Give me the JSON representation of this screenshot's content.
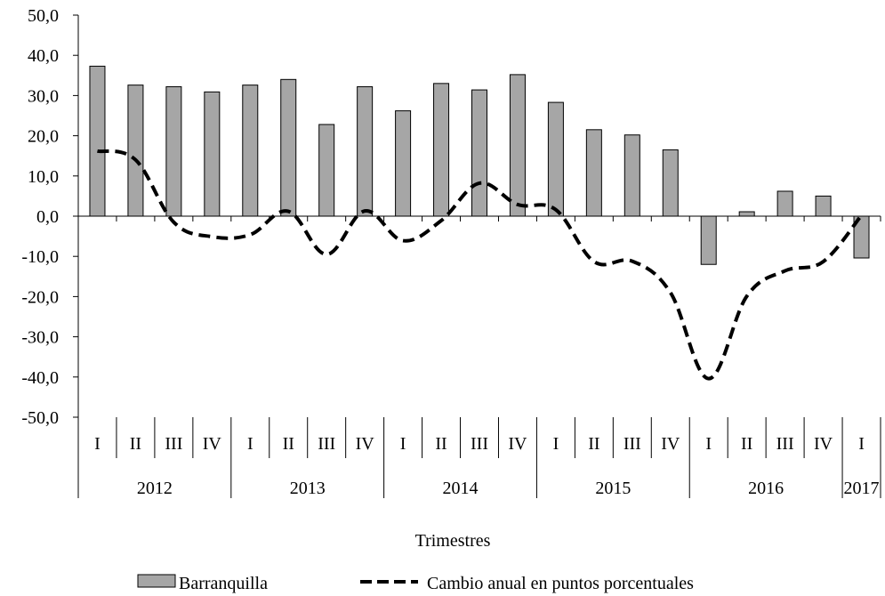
{
  "chart_data": {
    "type": "bar",
    "ylim": [
      -50,
      50
    ],
    "y_ticks": [
      "50,0",
      "40,0",
      "30,0",
      "20,0",
      "10,0",
      "0,0",
      "-10,0",
      "-20,0",
      "-30,0",
      "-40,0",
      "-50,0"
    ],
    "y_tick_values": [
      50,
      40,
      30,
      20,
      10,
      0,
      -10,
      -20,
      -30,
      -40,
      -50
    ],
    "categories": [
      "I",
      "II",
      "III",
      "IV",
      "I",
      "II",
      "III",
      "IV",
      "I",
      "II",
      "III",
      "IV",
      "I",
      "II",
      "III",
      "IV",
      "I",
      "II",
      "III",
      "IV",
      "I"
    ],
    "years": [
      {
        "label": "2012",
        "count": 4
      },
      {
        "label": "2013",
        "count": 4
      },
      {
        "label": "2014",
        "count": 4
      },
      {
        "label": "2015",
        "count": 4
      },
      {
        "label": "2016",
        "count": 4
      },
      {
        "label": "2017",
        "count": 1
      }
    ],
    "xlabel": "Trimestres",
    "series": [
      {
        "name": "Barranquilla",
        "type": "bar",
        "color": "#a6a6a6",
        "values": [
          37.3,
          32.6,
          32.2,
          30.9,
          32.6,
          34.0,
          22.8,
          32.2,
          26.2,
          33.0,
          31.4,
          35.2,
          28.3,
          21.5,
          20.2,
          16.5,
          -12.0,
          1.1,
          6.2,
          5.0,
          -10.4
        ]
      },
      {
        "name": "Cambio anual en puntos porcentuales",
        "type": "line",
        "style": "dashed",
        "color": "#000000",
        "values": [
          16.2,
          14.0,
          -1.5,
          -5.1,
          -4.6,
          1.2,
          -9.5,
          1.3,
          -6.1,
          -1.1,
          8.2,
          2.9,
          1.6,
          -11.3,
          -11.2,
          -19.0,
          -40.4,
          -19.9,
          -13.6,
          -11.3,
          0.2
        ]
      }
    ],
    "legend_position": "bottom",
    "grid": false
  }
}
